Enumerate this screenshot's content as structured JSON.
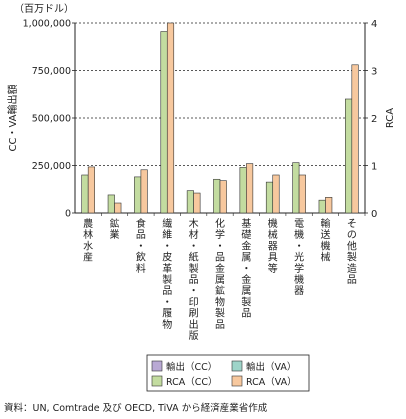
{
  "chart_data": {
    "type": "bar",
    "unit_label": "（百万ドル）",
    "ylabel_left": "CC・VA輸出額",
    "ylabel_right": "RCA",
    "ylim_left": [
      0,
      1000000
    ],
    "ylim_right": [
      0,
      4
    ],
    "left_ticks": [
      "0",
      "250,000",
      "500,000",
      "750,000",
      "1,000,000"
    ],
    "right_ticks": [
      "0",
      "1",
      "2",
      "3",
      "4"
    ],
    "grid": "dashed horizontal at left axis ticks",
    "categories": [
      "農林水産",
      "鉱業",
      "食品・飲料",
      "繊維・皮革製品・履物",
      "木材・紙製品・印刷出版",
      "化学・品金属鉱物製品",
      "基礎金属・金属製品",
      "機械器具等",
      "電機・光学機器",
      "輸送機械",
      "その他製造品"
    ],
    "series": [
      {
        "name": "輸出（CC）",
        "axis": "left",
        "color": "#b9a9d4",
        "values": [
          0,
          0,
          0,
          0,
          0,
          0,
          0,
          0,
          0,
          0,
          0
        ]
      },
      {
        "name": "輸出（VA）",
        "axis": "left",
        "color": "#9ed4c9",
        "values": [
          0,
          0,
          0,
          0,
          0,
          0,
          0,
          0,
          0,
          0,
          0
        ]
      },
      {
        "name": "RCA（CC）",
        "axis": "right",
        "color": "#c3dca0",
        "values": [
          0.8,
          0.38,
          0.76,
          3.82,
          0.47,
          0.71,
          0.96,
          0.65,
          1.06,
          0.27,
          2.4
        ]
      },
      {
        "name": "RCA（VA）",
        "axis": "right",
        "color": "#f7c89e",
        "values": [
          0.97,
          0.21,
          0.91,
          4.0,
          0.42,
          0.68,
          1.04,
          0.8,
          0.8,
          0.33,
          3.12
        ]
      }
    ],
    "legend_position": "bottom-right"
  },
  "source_note": "資料：UN, Comtrade 及び OECD, TiVA から経済産業省作成"
}
